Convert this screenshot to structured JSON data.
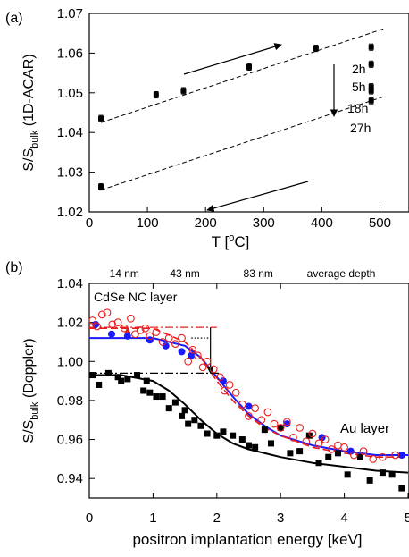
{
  "chart_data": [
    {
      "panel": "(a)",
      "type": "scatter",
      "xlabel_main": "T [",
      "xlabel_sup": "o",
      "xlabel_tail": "C]",
      "ylabel_main": "S/S",
      "ylabel_sub": "bulk",
      "ylabel_tail": " (1D-ACAR)",
      "xlim": [
        0,
        550
      ],
      "ylim": [
        1.02,
        1.07
      ],
      "xticks": [
        0,
        100,
        200,
        300,
        400,
        500
      ],
      "yticks": [
        "1.02",
        "1.03",
        "1.04",
        "1.05",
        "1.06",
        "1.07"
      ],
      "series": [
        {
          "marker": "square-errorbar",
          "color": "#000000",
          "x": [
            20,
            115,
            162,
            275,
            390,
            485,
            485,
            485,
            485,
            485,
            20
          ],
          "y": [
            1.0435,
            1.0495,
            1.0505,
            1.0565,
            1.0612,
            1.0615,
            1.0572,
            1.0515,
            1.0505,
            1.048,
            1.0263
          ],
          "err": [
            0.0008,
            0.0008,
            0.0008,
            0.0008,
            0.0008,
            0.0008,
            0.0008,
            0.0008,
            0.0008,
            0.0008,
            0.0008
          ]
        }
      ],
      "fit_lines": [
        {
          "style": "dashed",
          "x": [
            20,
            510
          ],
          "y": [
            1.0425,
            1.0663
          ]
        },
        {
          "style": "dashed",
          "x": [
            20,
            510
          ],
          "y": [
            1.0255,
            1.0492
          ]
        }
      ],
      "annotations": [
        "2h",
        "5h",
        "18h",
        "27h"
      ]
    },
    {
      "panel": "(b)",
      "type": "scatter",
      "xlabel": "positron implantation energy [keV]",
      "ylabel_main": "S/S",
      "ylabel_sub": "bulk",
      "ylabel_tail": " (Doppler)",
      "xlim": [
        0,
        5
      ],
      "ylim": [
        0.93,
        1.04
      ],
      "xticks": [
        "0",
        "1",
        "2",
        "3",
        "4",
        "5"
      ],
      "yticks": [
        "0.94",
        "0.96",
        "0.98",
        "1.00",
        "1.02",
        "1.04"
      ],
      "top_axis_labels": [
        "14 nm",
        "43 nm",
        "83 nm",
        "average depth"
      ],
      "top_axis_positions_kev": [
        1.0,
        2.0,
        3.0
      ],
      "annotations": [
        "CdSe NC layer",
        "Au layer"
      ],
      "series": [
        {
          "marker": "filled-square",
          "color": "#000000",
          "x": [
            0.05,
            0.15,
            0.3,
            0.45,
            0.5,
            0.6,
            0.75,
            0.85,
            0.9,
            0.95,
            1.05,
            1.15,
            1.25,
            1.35,
            1.45,
            1.5,
            1.55,
            1.65,
            1.75,
            1.85,
            2.0,
            2.1,
            2.25,
            2.4,
            2.5,
            2.6,
            2.75,
            2.85,
            3.0,
            3.15,
            3.3,
            3.45,
            3.6,
            3.75,
            3.9,
            4.05,
            4.25,
            4.4,
            4.6,
            4.75,
            4.9
          ],
          "y": [
            0.993,
            0.988,
            0.994,
            0.992,
            0.99,
            0.991,
            0.993,
            0.985,
            0.99,
            0.984,
            0.982,
            0.982,
            0.976,
            0.979,
            0.972,
            0.975,
            0.968,
            0.97,
            0.967,
            0.963,
            0.962,
            0.964,
            0.962,
            0.96,
            0.957,
            0.956,
            0.965,
            0.958,
            0.966,
            0.953,
            0.954,
            0.962,
            0.948,
            0.951,
            0.953,
            0.942,
            0.951,
            0.939,
            0.943,
            0.942,
            0.935
          ]
        },
        {
          "marker": "filled-circle",
          "color": "#1a1aff",
          "x": [
            0.1,
            0.35,
            0.6,
            0.95,
            1.2,
            1.45,
            1.6,
            2.1,
            2.5,
            3.1,
            3.65,
            4.1,
            4.9
          ],
          "y": [
            1.019,
            1.014,
            1.013,
            1.011,
            1.008,
            1.005,
            1.003,
            0.99,
            0.977,
            0.968,
            0.961,
            0.954,
            0.952
          ]
        },
        {
          "marker": "open-circle",
          "color": "#e81e1e",
          "x": [
            0.05,
            0.12,
            0.2,
            0.28,
            0.36,
            0.45,
            0.55,
            0.65,
            0.72,
            0.8,
            0.88,
            0.95,
            1.05,
            1.15,
            1.25,
            1.35,
            1.45,
            1.55,
            1.62,
            1.7,
            1.78,
            1.85,
            1.95,
            2.05,
            2.12,
            2.2,
            2.3,
            2.4,
            2.5,
            2.6,
            2.7,
            2.8,
            2.9,
            3.0,
            3.1,
            3.2,
            3.3,
            3.4,
            3.5,
            3.6,
            3.7,
            3.8,
            3.9,
            4.0,
            4.15,
            4.3,
            4.45,
            4.6,
            4.8
          ],
          "y": [
            1.021,
            1.018,
            1.024,
            1.025,
            1.019,
            1.02,
            1.017,
            1.022,
            1.014,
            1.016,
            1.017,
            1.013,
            1.015,
            1.01,
            1.012,
            1.009,
            1.012,
            1.0,
            1.006,
            1.003,
            0.997,
            1.0,
            0.996,
            0.992,
            0.985,
            0.988,
            0.984,
            0.978,
            0.972,
            0.976,
            0.97,
            0.974,
            0.968,
            0.966,
            0.969,
            0.961,
            0.966,
            0.959,
            0.963,
            0.958,
            0.96,
            0.955,
            0.957,
            0.956,
            0.952,
            0.954,
            0.95,
            0.951,
            0.952
          ]
        }
      ],
      "fit_curves": [
        {
          "color": "#000000",
          "style": "solid",
          "x": [
            0,
            0.5,
            1.0,
            1.25,
            1.5,
            1.75,
            2.0,
            2.25,
            2.5,
            3.0,
            3.5,
            4.0,
            4.5,
            5.0
          ],
          "y": [
            0.993,
            0.993,
            0.99,
            0.985,
            0.978,
            0.97,
            0.963,
            0.958,
            0.955,
            0.951,
            0.948,
            0.946,
            0.944,
            0.943
          ]
        },
        {
          "color": "#1a1aff",
          "style": "solid",
          "x": [
            0,
            1.0,
            1.5,
            1.75,
            2.0,
            2.25,
            2.5,
            2.75,
            3.0,
            3.5,
            4.0,
            4.5,
            5.0
          ],
          "y": [
            1.012,
            1.012,
            1.008,
            1.002,
            0.992,
            0.982,
            0.973,
            0.967,
            0.962,
            0.957,
            0.954,
            0.952,
            0.952
          ]
        },
        {
          "color": "#e81e1e",
          "style": "dashed",
          "x": [
            0,
            1.0,
            1.5,
            1.75,
            2.0,
            2.25,
            2.5,
            2.75,
            3.0,
            3.5,
            4.0,
            4.5,
            5.0
          ],
          "y": [
            1.017,
            1.017,
            1.01,
            1.002,
            0.99,
            0.98,
            0.972,
            0.966,
            0.962,
            0.956,
            0.953,
            0.951,
            0.951
          ]
        }
      ],
      "reference_lines": [
        {
          "color": "#e81e1e",
          "style": "dashdot",
          "x": [
            0,
            2.0
          ],
          "y": [
            1.0175,
            1.0175
          ]
        },
        {
          "color": "#000000",
          "style": "dashdot",
          "x": [
            0,
            2.05
          ],
          "y": [
            0.994,
            0.994
          ]
        },
        {
          "color": "#000000",
          "style": "dotted",
          "x": [
            1.6,
            1.9
          ],
          "y": [
            1.012,
            1.012
          ]
        }
      ],
      "arrows": [
        {
          "color": "#e81e1e",
          "x": [
            0.6,
            0.6
          ],
          "y": [
            1.0125,
            1.0175
          ]
        },
        {
          "color": "#000000",
          "x": [
            1.9,
            1.9
          ],
          "y": [
            1.0175,
            0.994
          ]
        }
      ]
    }
  ]
}
